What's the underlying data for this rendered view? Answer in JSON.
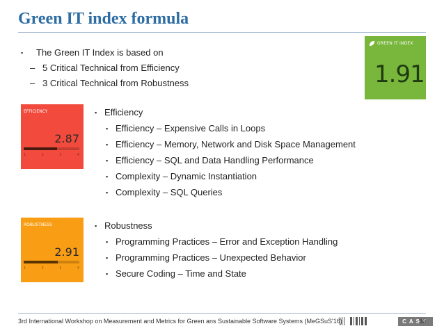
{
  "title": "Green IT index formula",
  "intro": {
    "heading": "The Green IT Index is based on",
    "items": [
      "5 Critical Technical from Efficiency",
      "3 Critical Technical from Robustness"
    ]
  },
  "green_tile": {
    "label": "GREEN IT INDEX",
    "value": "1.91",
    "color": "#78b63c"
  },
  "efficiency_tile": {
    "label": "EFFICIENCY",
    "value": "2.87",
    "progress_fraction": 0.6,
    "ticks": [
      "1",
      "2",
      "3",
      "4"
    ],
    "color": "#f24b3d"
  },
  "robustness_tile": {
    "label": "ROBUSTNESS",
    "value": "2.91",
    "progress_fraction": 0.61,
    "ticks": [
      "1",
      "2",
      "3",
      "4"
    ],
    "color": "#f99e14"
  },
  "efficiency_list": {
    "heading": "Efficiency",
    "items": [
      "Efficiency – Expensive Calls in Loops",
      "Efficiency – Memory, Network and Disk Space Management",
      "Efficiency – SQL and Data Handling Performance",
      "Complexity – Dynamic Instantiation",
      "Complexity – SQL Queries"
    ]
  },
  "robustness_list": {
    "heading": "Robustness",
    "items": [
      "Programming Practices – Error and Exception Handling",
      "Programming Practices – Unexpected Behavior",
      "Secure Coding – Time and State"
    ]
  },
  "footer": {
    "text": "3rd International Workshop on Measurement and Metrics for Green ans Sustainable Software Systems (MeGSuS'16)",
    "brand": "CAST",
    "page": "32"
  }
}
